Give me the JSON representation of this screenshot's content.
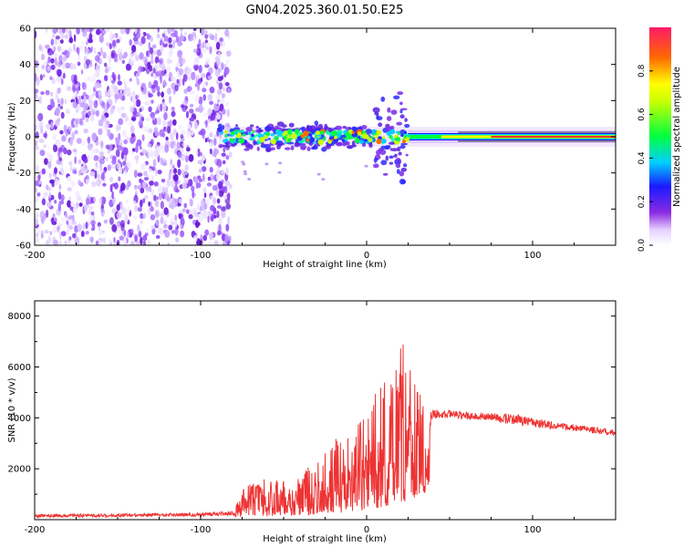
{
  "title": "GN04.2025.360.01.50.E25",
  "chart_data": [
    {
      "type": "heatmap",
      "name": "spectrogram",
      "xlabel": "Height of straight line (km)",
      "ylabel": "Frequency (Hz)",
      "xlim": [
        -200,
        150
      ],
      "ylim": [
        -60,
        60
      ],
      "xticks": [
        -200,
        -100,
        0,
        100
      ],
      "yticks": [
        -60,
        -40,
        -20,
        0,
        20,
        40,
        60
      ],
      "noise_region_x": [
        -200,
        -84
      ],
      "signal_track": {
        "freq_hz": 0,
        "x_start": -89,
        "x_end": 150,
        "broadband_burst_x": [
          5,
          25
        ]
      },
      "colorbar": {
        "label": "Normalized spectral amplitude",
        "range": [
          0,
          1
        ],
        "ticks": [
          0.0,
          0.2,
          0.4,
          0.6,
          0.8
        ]
      }
    },
    {
      "type": "line",
      "name": "snr",
      "xlabel": "Height of straight line (km)",
      "ylabel": "SNR (10 * v/v)",
      "xlim": [
        -200,
        150
      ],
      "ylim": [
        0,
        8600
      ],
      "xticks": [
        -200,
        -100,
        0,
        100
      ],
      "yticks": [
        2000,
        4000,
        6000,
        8000
      ],
      "color": "#ee3333",
      "profile_x": [
        -200,
        -150,
        -100,
        -80,
        -75,
        -60,
        -50,
        -40,
        -30,
        -20,
        -10,
        0,
        10,
        20,
        30,
        35,
        40,
        50,
        60,
        70,
        80,
        90,
        100,
        120,
        140,
        150
      ],
      "profile_base": [
        150,
        170,
        200,
        250,
        350,
        450,
        500,
        550,
        650,
        800,
        1000,
        1300,
        1700,
        2200,
        2800,
        3500,
        4150,
        4150,
        4100,
        4050,
        4000,
        3950,
        3800,
        3650,
        3500,
        3400
      ],
      "profile_amp": [
        120,
        120,
        130,
        160,
        900,
        1200,
        1100,
        1400,
        1700,
        2300,
        2500,
        3100,
        3800,
        5000,
        4200,
        3000,
        350,
        300,
        300,
        300,
        400,
        450,
        350,
        250,
        250,
        250
      ]
    }
  ]
}
